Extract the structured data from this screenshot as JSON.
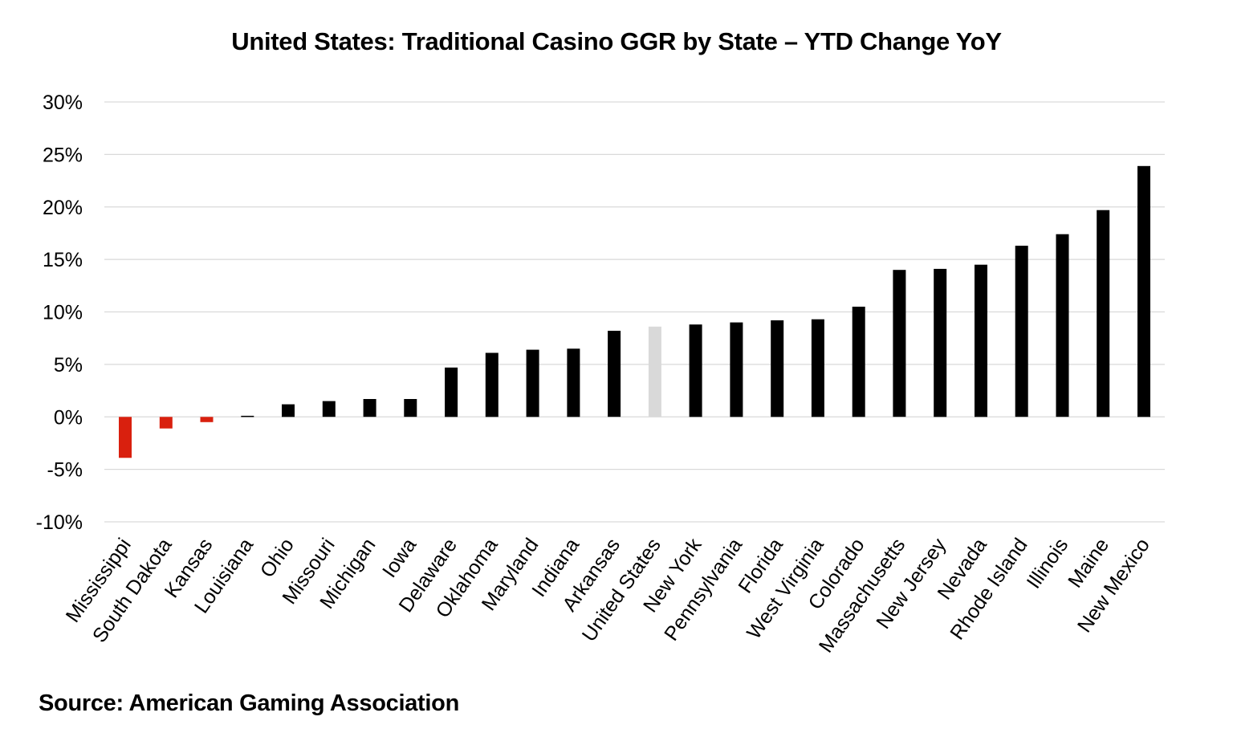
{
  "chart_data": {
    "type": "bar",
    "title": "United States: Traditional Casino GGR by State – YTD Change YoY",
    "xlabel": "",
    "ylabel": "",
    "ylim": [
      -10,
      30
    ],
    "y_ticks": [
      30,
      25,
      20,
      15,
      10,
      5,
      0,
      -5,
      -10
    ],
    "y_tick_labels": [
      "30%",
      "25%",
      "20%",
      "15%",
      "10%",
      "5%",
      "0%",
      "-5%",
      "-10%"
    ],
    "grid": true,
    "legend": "none",
    "categories": [
      "Mississippi",
      "South Dakota",
      "Kansas",
      "Louisiana",
      "Ohio",
      "Missouri",
      "Michigan",
      "Iowa",
      "Delaware",
      "Oklahoma",
      "Maryland",
      "Indiana",
      "Arkansas",
      "United States",
      "New York",
      "Pennsylvania",
      "Florida",
      "West Virginia",
      "Colorado",
      "Massachusetts",
      "New Jersey",
      "Nevada",
      "Rhode Island",
      "Illinois",
      "Maine",
      "New Mexico"
    ],
    "values": [
      -3.9,
      -1.1,
      -0.5,
      0.1,
      1.2,
      1.5,
      1.7,
      1.7,
      4.7,
      6.1,
      6.4,
      6.5,
      8.2,
      8.6,
      8.8,
      9.0,
      9.2,
      9.3,
      10.5,
      14.0,
      14.1,
      14.5,
      16.3,
      17.4,
      19.7,
      23.9
    ],
    "colors": {
      "negative": "#d9200e",
      "positive": "#000000",
      "total": "#d9d9d9",
      "grid": "#d9d9d9"
    },
    "highlight_category": "United States"
  },
  "footer": {
    "source": "Source: American Gaming Association"
  }
}
